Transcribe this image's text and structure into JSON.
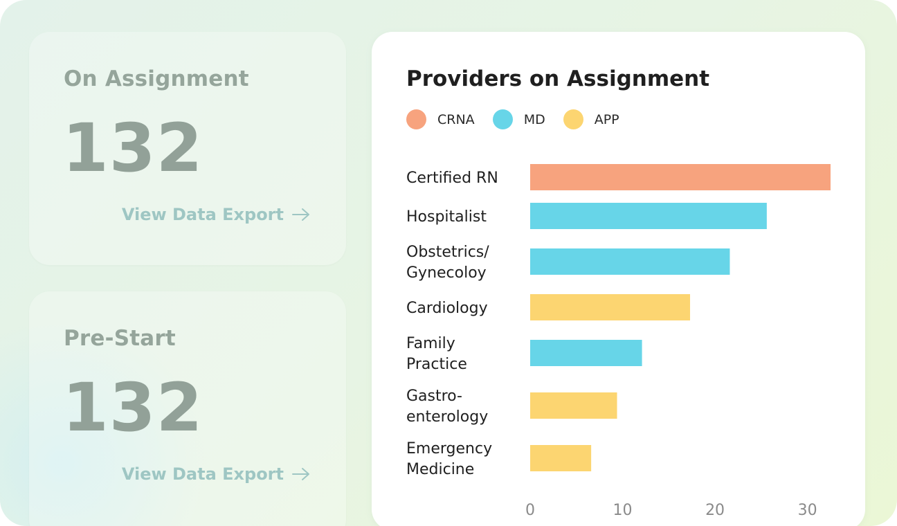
{
  "cards": [
    {
      "title": "On Assignment",
      "value": "132",
      "link": "View Data Export"
    },
    {
      "title": "Pre-Start",
      "value": "132",
      "link": "View Data Export"
    }
  ],
  "chart": {
    "title": "Providers on Assignment",
    "legend": [
      {
        "label": "CRNA",
        "color": "#f7a37e"
      },
      {
        "label": "MD",
        "color": "#67d5e8"
      },
      {
        "label": "APP",
        "color": "#fcd571"
      }
    ]
  },
  "chart_data": {
    "type": "bar",
    "orientation": "horizontal",
    "categories": [
      [
        "Certified RN"
      ],
      [
        "Hospitalist"
      ],
      [
        "Obstetrics/",
        "Gynecoloy"
      ],
      [
        "Cardiology"
      ],
      [
        "Family",
        "Practice"
      ],
      [
        "Gastro-",
        "enterology"
      ],
      [
        "Emergency",
        "Medicine"
      ]
    ],
    "values": [
      32.5,
      25.6,
      21.6,
      17.3,
      12.1,
      9.4,
      6.6
    ],
    "groups": [
      "CRNA",
      "MD",
      "MD",
      "APP",
      "MD",
      "APP",
      "APP"
    ],
    "xticks": [
      0,
      10,
      20,
      30
    ],
    "xlim": [
      0,
      32.5
    ],
    "grid": false
  }
}
